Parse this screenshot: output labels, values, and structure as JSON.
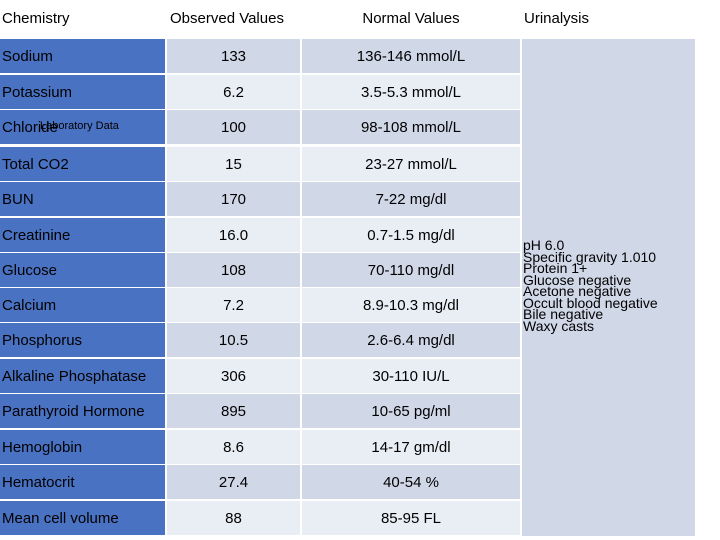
{
  "headers": {
    "chemistry": "Chemistry",
    "observed": "Observed Values",
    "normal": "Normal Values",
    "urinalysis": "Urinalysis"
  },
  "overlay_label": "Laboratory Data",
  "rows": [
    {
      "name": "Sodium",
      "observed": "133",
      "normal": "136-146 mmol/L"
    },
    {
      "name": "Potassium",
      "observed": "6.2",
      "normal": "3.5-5.3 mmol/L"
    },
    {
      "name": "Chloride",
      "observed": "100",
      "normal": "98-108 mmol/L"
    },
    {
      "name": "Total CO2",
      "observed": "15",
      "normal": "23-27 mmol/L"
    },
    {
      "name": "BUN",
      "observed": "170",
      "normal": "7-22 mg/dl"
    },
    {
      "name": "Creatinine",
      "observed": "16.0",
      "normal": "0.7-1.5 mg/dl"
    },
    {
      "name": "Glucose",
      "observed": "108",
      "normal": "70-110 mg/dl"
    },
    {
      "name": "Calcium",
      "observed": "7.2",
      "normal": "8.9-10.3 mg/dl"
    },
    {
      "name": "Phosphorus",
      "observed": "10.5",
      "normal": "2.6-6.4 mg/dl"
    },
    {
      "name": "Alkaline Phosphatase",
      "observed": "306",
      "normal": "30-110 IU/L"
    },
    {
      "name": "Parathyroid Hormone",
      "observed": "895",
      "normal": "10-65 pg/ml"
    },
    {
      "name": "Hemoglobin",
      "observed": "8.6",
      "normal": "14-17 gm/dl"
    },
    {
      "name": "Hematocrit",
      "observed": "27.4",
      "normal": "40-54 %"
    },
    {
      "name": "Mean cell volume",
      "observed": "88",
      "normal": "85-95 FL"
    }
  ],
  "urinalysis": [
    "pH 6.0",
    "Specific gravity 1.010",
    "Protein 1+",
    "Glucose negative",
    "Acetone negative",
    "Occult blood negative",
    "Bile negative",
    "Waxy casts"
  ],
  "colors": {
    "name_column": "#4a72c2",
    "row_odd": "#d0d8e8",
    "row_even": "#e9edf4"
  }
}
